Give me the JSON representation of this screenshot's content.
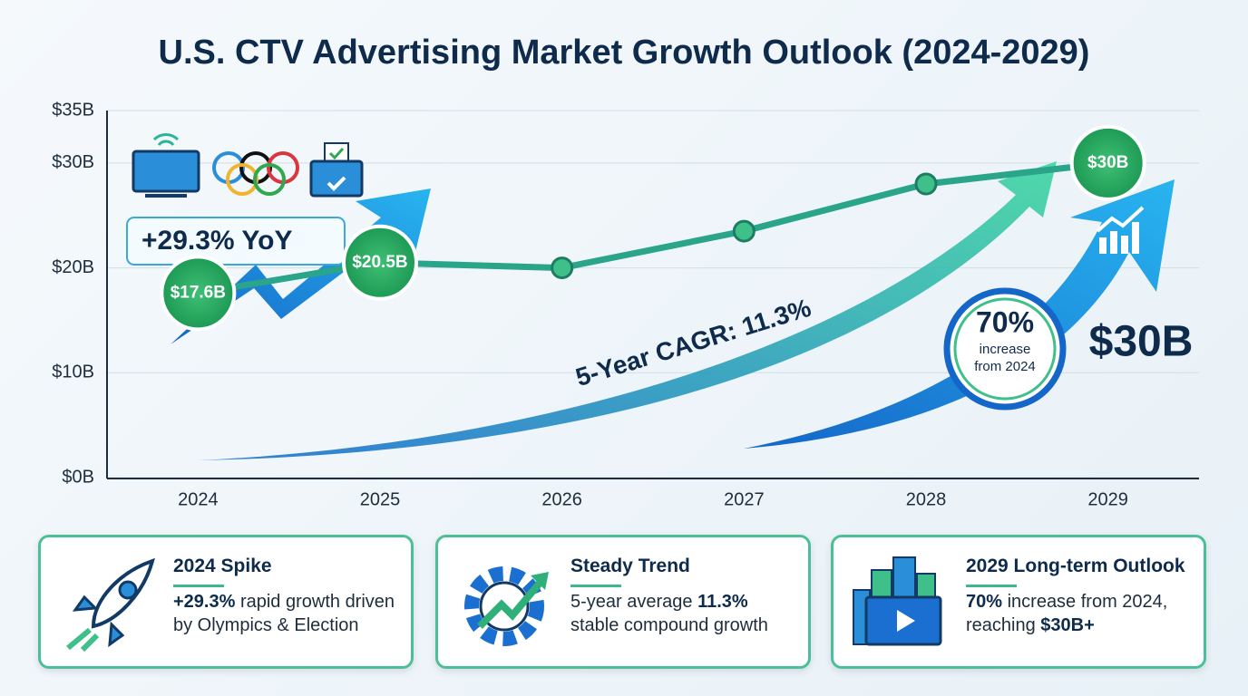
{
  "chart_data": {
    "type": "line",
    "title": "U.S. CTV Advertising Market Growth Outlook (2024-2029)",
    "categories": [
      "2024",
      "2025",
      "2026",
      "2027",
      "2028",
      "2029"
    ],
    "values": [
      17.6,
      20.5,
      20,
      23.5,
      28,
      30
    ],
    "value_labels": [
      "$17.6B",
      "$20.5B",
      null,
      null,
      null,
      "$30B"
    ],
    "color": "#2aa58a",
    "ylim": [
      0,
      35
    ],
    "yticks": [
      {
        "value": 0,
        "label": "$0B"
      },
      {
        "value": 10,
        "label": "$10B"
      },
      {
        "value": 20,
        "label": "$20B"
      },
      {
        "value": 30,
        "label": "$30B"
      },
      {
        "value": 35,
        "label": "$35B"
      }
    ],
    "grid": true,
    "annotations": {
      "yoy": "+29.3% YoY",
      "cagr": "5-Year CAGR: 11.3%",
      "increase_pct": "70%",
      "increase_line1": "increase",
      "increase_line2": "from 2024",
      "target": "$30B"
    }
  },
  "cards": [
    {
      "title": "2024 Spike",
      "parts": [
        {
          "text": "+29.3%",
          "strong": true
        },
        {
          "text": " rapid growth driven by Olympics & Election",
          "strong": false
        }
      ]
    },
    {
      "title": "Steady Trend",
      "parts": [
        {
          "text": "5-year average ",
          "strong": false
        },
        {
          "text": "11.3%",
          "strong": true
        },
        {
          "text": " stable compound growth",
          "strong": false
        }
      ]
    },
    {
      "title": "2029 Long-term Outlook",
      "parts": [
        {
          "text": "70%",
          "strong": true
        },
        {
          "text": " increase from 2024, reaching ",
          "strong": false
        },
        {
          "text": "$30B+",
          "strong": true
        }
      ]
    }
  ]
}
